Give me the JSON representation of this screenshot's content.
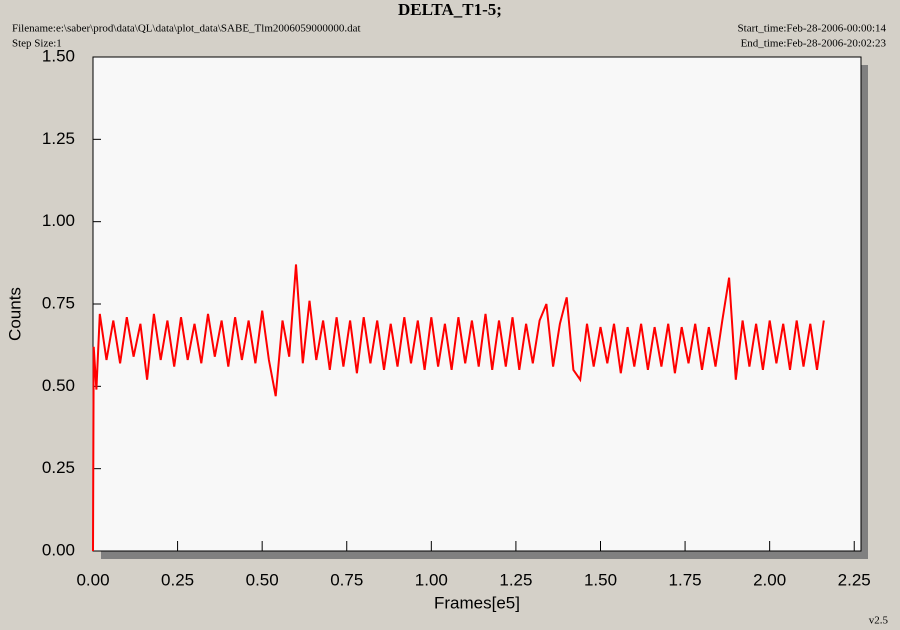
{
  "chart_data": {
    "type": "line",
    "title": "DELTA_T1-5;",
    "filename": "Filename:e:\\saber\\prod\\data\\QL\\data\\plot_data\\SABE_Tlm2006059000000.dat",
    "step_size": "Step Size:1",
    "start_time": "Start_time:Feb-28-2006-00:00:14",
    "end_time": "End_time:Feb-28-2006-20:02:23",
    "xlabel": "Frames[e5]",
    "ylabel": "Counts",
    "version": "v2.5",
    "xlim": [
      0,
      2.27
    ],
    "ylim": [
      0,
      1.5
    ],
    "xticks": [
      {
        "value": 0,
        "label": "0.00"
      },
      {
        "value": 0.25,
        "label": "0.25"
      },
      {
        "value": 0.5,
        "label": "0.50"
      },
      {
        "value": 0.75,
        "label": "0.75"
      },
      {
        "value": 1,
        "label": "1.00"
      },
      {
        "value": 1.25,
        "label": "1.25"
      },
      {
        "value": 1.5,
        "label": "1.50"
      },
      {
        "value": 1.75,
        "label": "1.75"
      },
      {
        "value": 2,
        "label": "2.00"
      },
      {
        "value": 2.25,
        "label": "2.25"
      }
    ],
    "yticks": [
      {
        "value": 0,
        "label": "0.00"
      },
      {
        "value": 0.25,
        "label": "0.25"
      },
      {
        "value": 0.5,
        "label": "0.50"
      },
      {
        "value": 0.75,
        "label": "0.75"
      },
      {
        "value": 1,
        "label": "1.00"
      },
      {
        "value": 1.25,
        "label": "1.25"
      },
      {
        "value": 1.5,
        "label": "1.50"
      }
    ],
    "x": [
      0,
      0.002,
      0.01,
      0.02,
      0.04,
      0.06,
      0.08,
      0.1,
      0.12,
      0.14,
      0.16,
      0.18,
      0.2,
      0.22,
      0.24,
      0.26,
      0.28,
      0.3,
      0.32,
      0.34,
      0.36,
      0.38,
      0.4,
      0.42,
      0.44,
      0.46,
      0.48,
      0.5,
      0.52,
      0.54,
      0.56,
      0.58,
      0.6,
      0.62,
      0.64,
      0.66,
      0.68,
      0.7,
      0.72,
      0.74,
      0.76,
      0.78,
      0.8,
      0.82,
      0.84,
      0.86,
      0.88,
      0.9,
      0.92,
      0.94,
      0.96,
      0.98,
      1,
      1.02,
      1.04,
      1.06,
      1.08,
      1.1,
      1.12,
      1.14,
      1.16,
      1.18,
      1.2,
      1.22,
      1.24,
      1.26,
      1.28,
      1.3,
      1.32,
      1.34,
      1.36,
      1.38,
      1.4,
      1.42,
      1.44,
      1.46,
      1.48,
      1.5,
      1.52,
      1.54,
      1.56,
      1.58,
      1.6,
      1.62,
      1.64,
      1.66,
      1.68,
      1.7,
      1.72,
      1.74,
      1.76,
      1.78,
      1.8,
      1.82,
      1.84,
      1.86,
      1.88,
      1.9,
      1.92,
      1.94,
      1.96,
      1.98,
      2,
      2.02,
      2.04,
      2.06,
      2.08,
      2.1,
      2.12,
      2.14,
      2.16
    ],
    "series": [
      {
        "name": "DELTA_T1-5",
        "color": "#ff0000",
        "values": [
          0,
          0.62,
          0.49,
          0.72,
          0.58,
          0.7,
          0.57,
          0.71,
          0.59,
          0.69,
          0.52,
          0.72,
          0.58,
          0.7,
          0.56,
          0.71,
          0.58,
          0.69,
          0.57,
          0.72,
          0.59,
          0.7,
          0.56,
          0.71,
          0.58,
          0.7,
          0.57,
          0.73,
          0.58,
          0.47,
          0.7,
          0.59,
          0.87,
          0.57,
          0.76,
          0.58,
          0.7,
          0.55,
          0.71,
          0.56,
          0.7,
          0.54,
          0.71,
          0.57,
          0.7,
          0.55,
          0.69,
          0.56,
          0.71,
          0.57,
          0.7,
          0.55,
          0.71,
          0.56,
          0.69,
          0.55,
          0.71,
          0.57,
          0.7,
          0.56,
          0.72,
          0.55,
          0.7,
          0.56,
          0.71,
          0.55,
          0.69,
          0.57,
          0.7,
          0.75,
          0.56,
          0.69,
          0.77,
          0.55,
          0.52,
          0.69,
          0.56,
          0.68,
          0.57,
          0.69,
          0.54,
          0.68,
          0.56,
          0.69,
          0.55,
          0.68,
          0.56,
          0.69,
          0.54,
          0.68,
          0.57,
          0.69,
          0.55,
          0.68,
          0.56,
          0.7,
          0.83,
          0.52,
          0.7,
          0.56,
          0.69,
          0.55,
          0.7,
          0.57,
          0.69,
          0.55,
          0.7,
          0.56,
          0.69,
          0.55,
          0.7
        ]
      }
    ]
  }
}
